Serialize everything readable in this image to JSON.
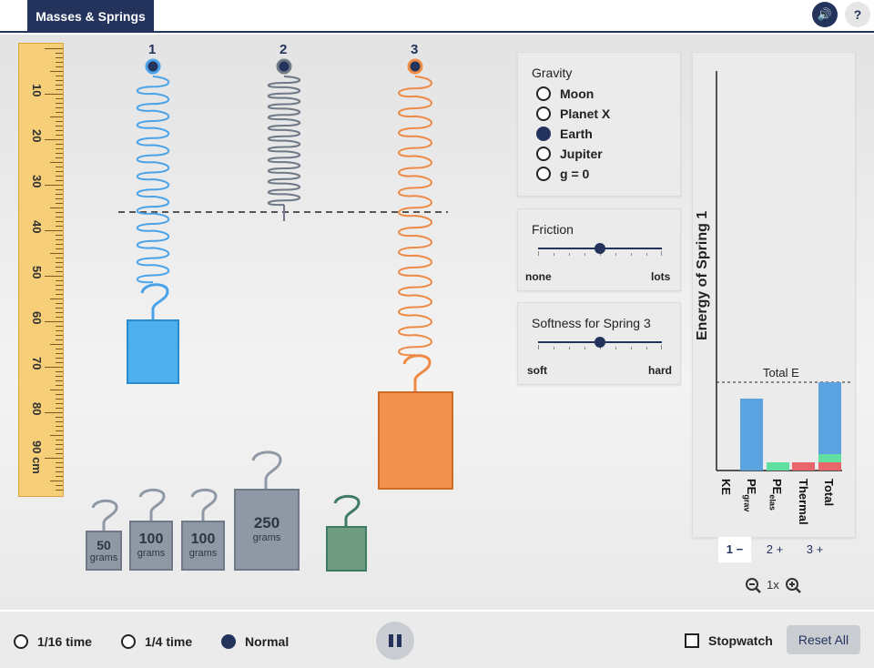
{
  "header": {
    "title": "Masses & Springs",
    "sound_icon": "sound-icon",
    "help_label": "?"
  },
  "ruler": {
    "labels": [
      "10",
      "20",
      "30",
      "40",
      "50",
      "60",
      "70",
      "80",
      "90 cm"
    ]
  },
  "springs": [
    {
      "label": "1",
      "color": "#4aa3e8"
    },
    {
      "label": "2",
      "color": "#6f7987"
    },
    {
      "label": "3",
      "color": "#ee8a45"
    }
  ],
  "gravity": {
    "title": "Gravity",
    "options": [
      "Moon",
      "Planet X",
      "Earth",
      "Jupiter",
      "g = 0"
    ],
    "selected": "Earth"
  },
  "friction": {
    "title": "Friction",
    "min_label": "none",
    "max_label": "lots",
    "value": 0.5
  },
  "softness": {
    "title": "Softness for Spring 3",
    "min_label": "soft",
    "max_label": "hard",
    "value": 0.5
  },
  "energy": {
    "ylabel": "Energy of Spring 1",
    "total_label": "Total E",
    "bars": [
      "KE",
      "PE",
      "PE",
      "Thermal",
      "Total"
    ],
    "pe_grav_sub": "grav",
    "pe_elas_sub": "elas",
    "colors": {
      "ke": "#4aa3e8",
      "pe_grav": "#5ba3e0",
      "pe_elas": "#5fe0a0",
      "thermal": "#e8666a",
      "total": "#5ba3e0"
    }
  },
  "spring_select": [
    "1 −",
    "2 +",
    "3 +"
  ],
  "zoom": {
    "label": "1x"
  },
  "masses": [
    {
      "num": "50",
      "unit": "grams"
    },
    {
      "num": "100",
      "unit": "grams"
    },
    {
      "num": "100",
      "unit": "grams"
    },
    {
      "num": "250",
      "unit": "grams"
    }
  ],
  "time_speed": {
    "options": [
      "1/16 time",
      "1/4 time",
      "Normal"
    ],
    "selected": "Normal"
  },
  "stopwatch_label": "Stopwatch",
  "reset_label": "Reset All"
}
